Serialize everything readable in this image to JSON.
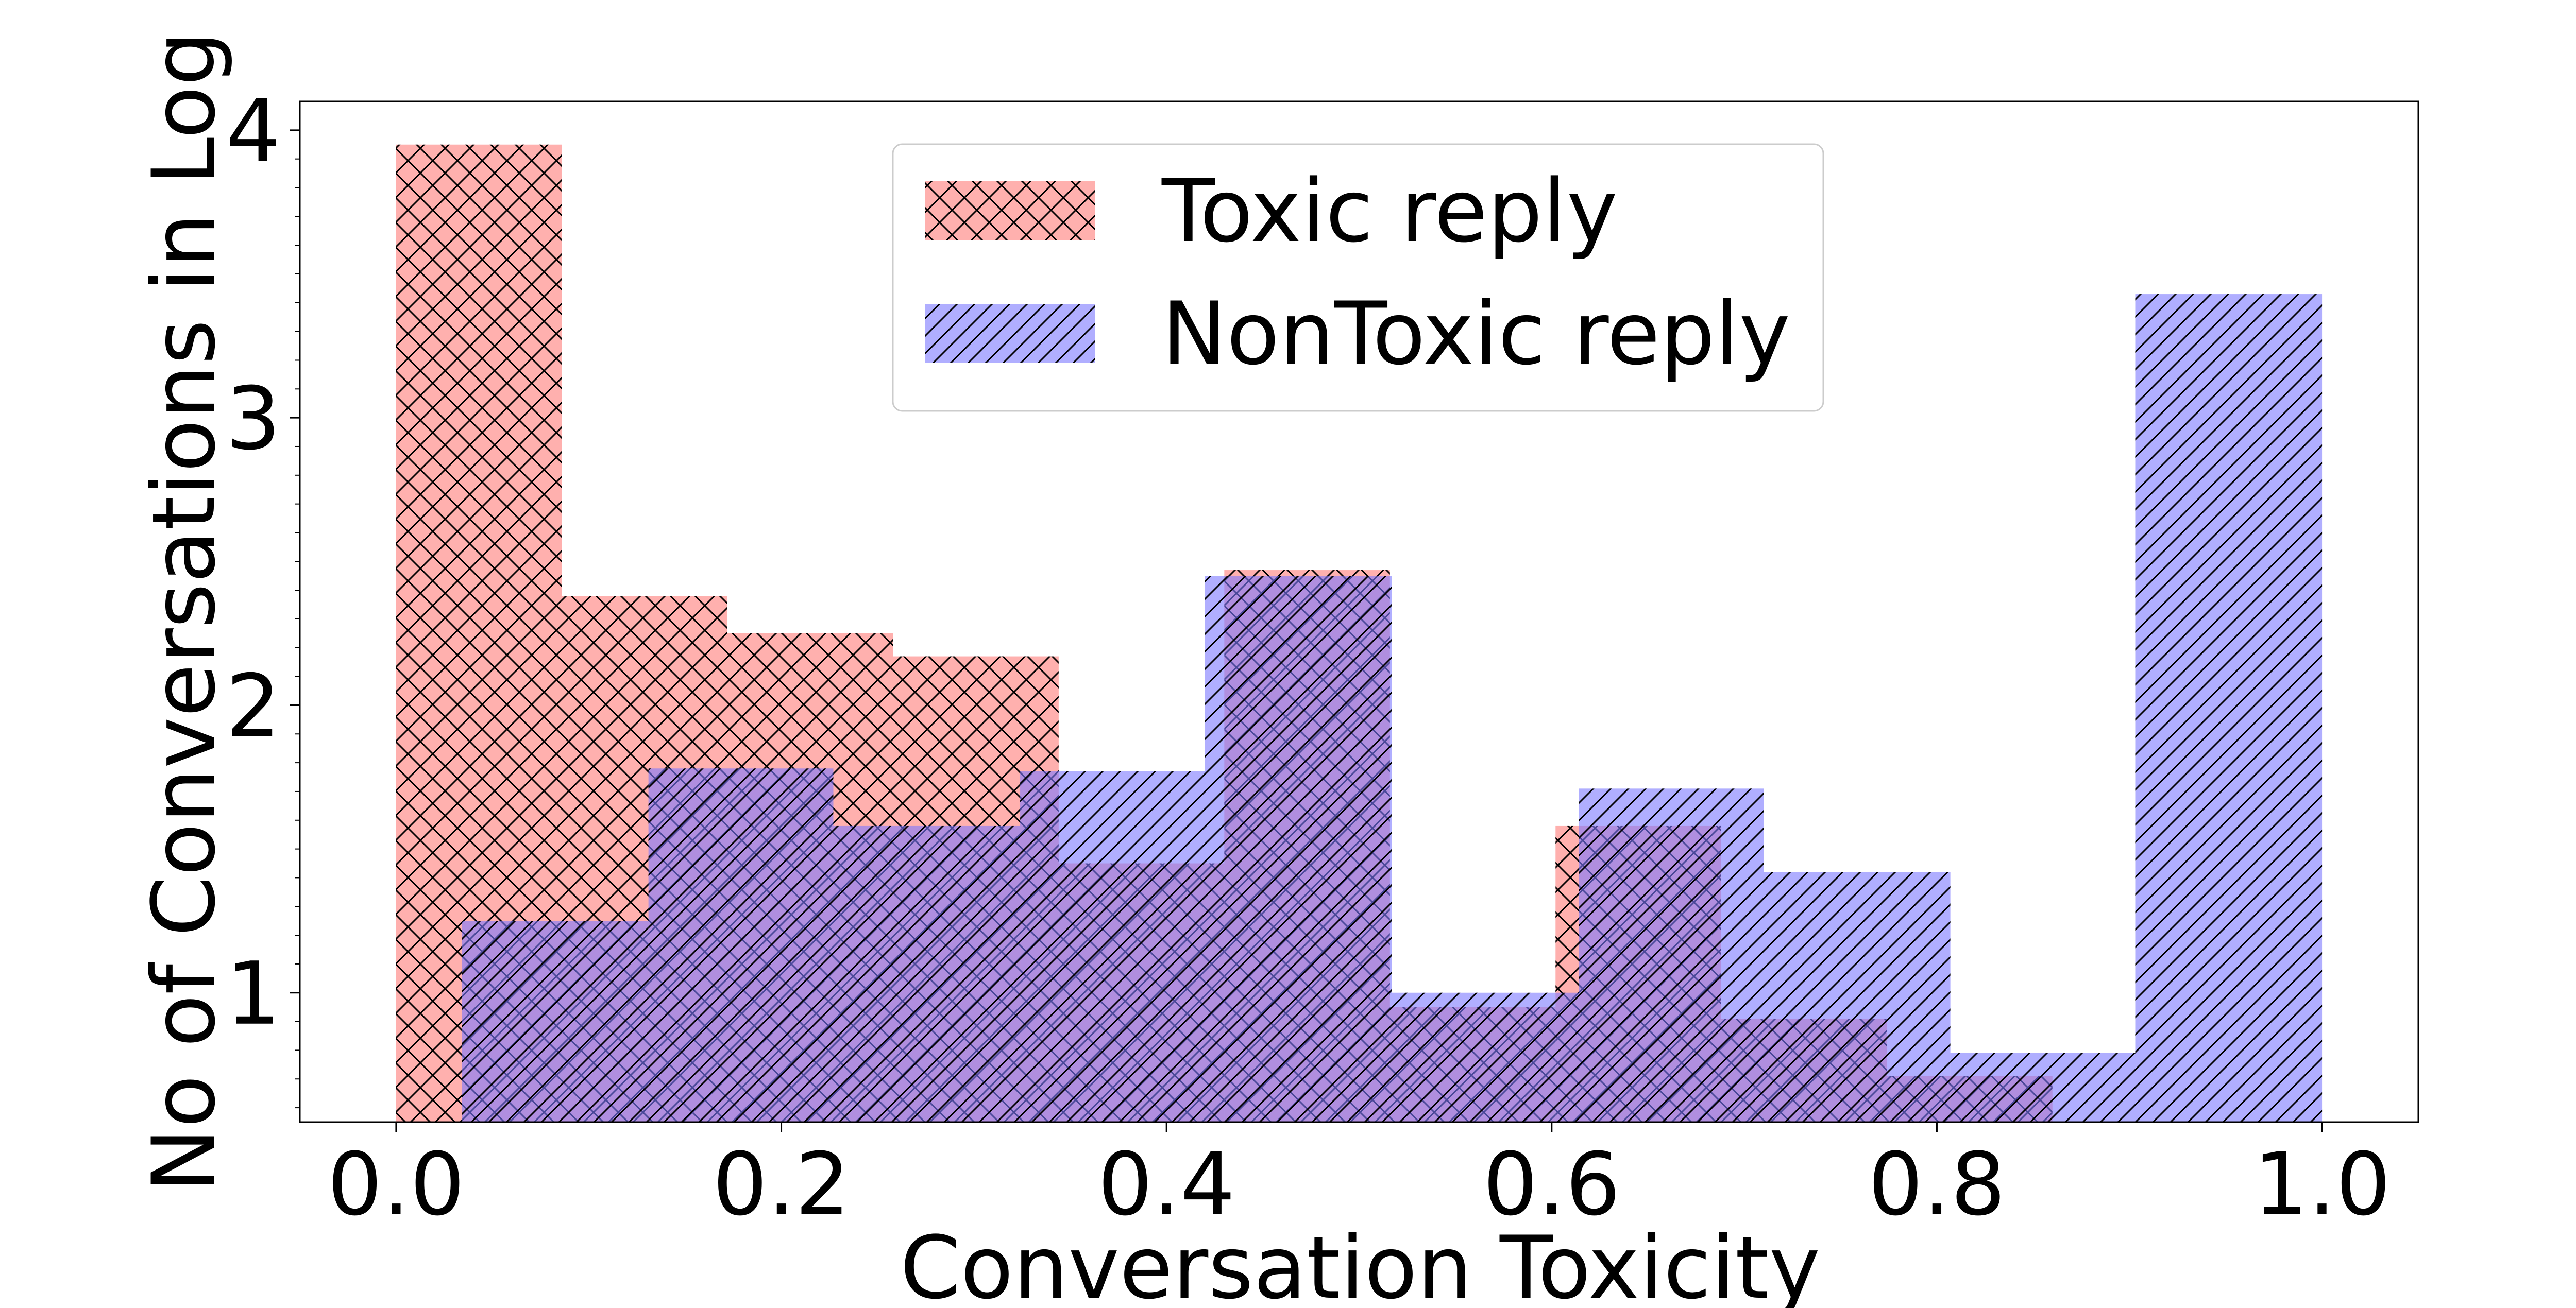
{
  "chart_data": {
    "type": "bar",
    "title": "",
    "xlabel": "Conversation Toxicity",
    "ylabel": "No of Conversations in Log",
    "xlim": [
      -0.05,
      1.05
    ],
    "ylim": [
      0.55,
      4.1
    ],
    "xticks": [
      0.0,
      0.2,
      0.4,
      0.6,
      0.8,
      1.0
    ],
    "xtick_labels": [
      "0.0",
      "0.2",
      "0.4",
      "0.6",
      "0.8",
      "1.0"
    ],
    "yticks": [
      1,
      2,
      3,
      4
    ],
    "ytick_labels": [
      "1",
      "2",
      "3",
      "4"
    ],
    "grid": false,
    "legend_position": "top-center",
    "series": [
      {
        "name": "Toxic reply",
        "color": "#ff7b78",
        "hatch": "crosshatch",
        "bins": [
          {
            "x0": 0.0,
            "x1": 0.086,
            "value": 3.95
          },
          {
            "x0": 0.086,
            "x1": 0.172,
            "value": 2.38
          },
          {
            "x0": 0.172,
            "x1": 0.258,
            "value": 2.25
          },
          {
            "x0": 0.258,
            "x1": 0.344,
            "value": 2.17
          },
          {
            "x0": 0.344,
            "x1": 0.43,
            "value": 1.45
          },
          {
            "x0": 0.43,
            "x1": 0.516,
            "value": 2.47
          },
          {
            "x0": 0.516,
            "x1": 0.602,
            "value": 0.95
          },
          {
            "x0": 0.602,
            "x1": 0.688,
            "value": 1.58
          },
          {
            "x0": 0.688,
            "x1": 0.774,
            "value": 0.91
          },
          {
            "x0": 0.774,
            "x1": 0.86,
            "value": 0.71
          }
        ]
      },
      {
        "name": "NonToxic reply",
        "color": "#7b78ff",
        "hatch": "diagonal",
        "bins": [
          {
            "x0": 0.034,
            "x1": 0.131,
            "value": 1.25
          },
          {
            "x0": 0.131,
            "x1": 0.227,
            "value": 1.78
          },
          {
            "x0": 0.227,
            "x1": 0.324,
            "value": 1.58
          },
          {
            "x0": 0.324,
            "x1": 0.42,
            "value": 1.77
          },
          {
            "x0": 0.42,
            "x1": 0.517,
            "value": 2.45
          },
          {
            "x0": 0.517,
            "x1": 0.614,
            "value": 1.0
          },
          {
            "x0": 0.614,
            "x1": 0.71,
            "value": 1.71
          },
          {
            "x0": 0.71,
            "x1": 0.807,
            "value": 1.42
          },
          {
            "x0": 0.807,
            "x1": 0.903,
            "value": 0.79
          },
          {
            "x0": 0.903,
            "x1": 1.0,
            "value": 3.43
          }
        ]
      }
    ]
  }
}
